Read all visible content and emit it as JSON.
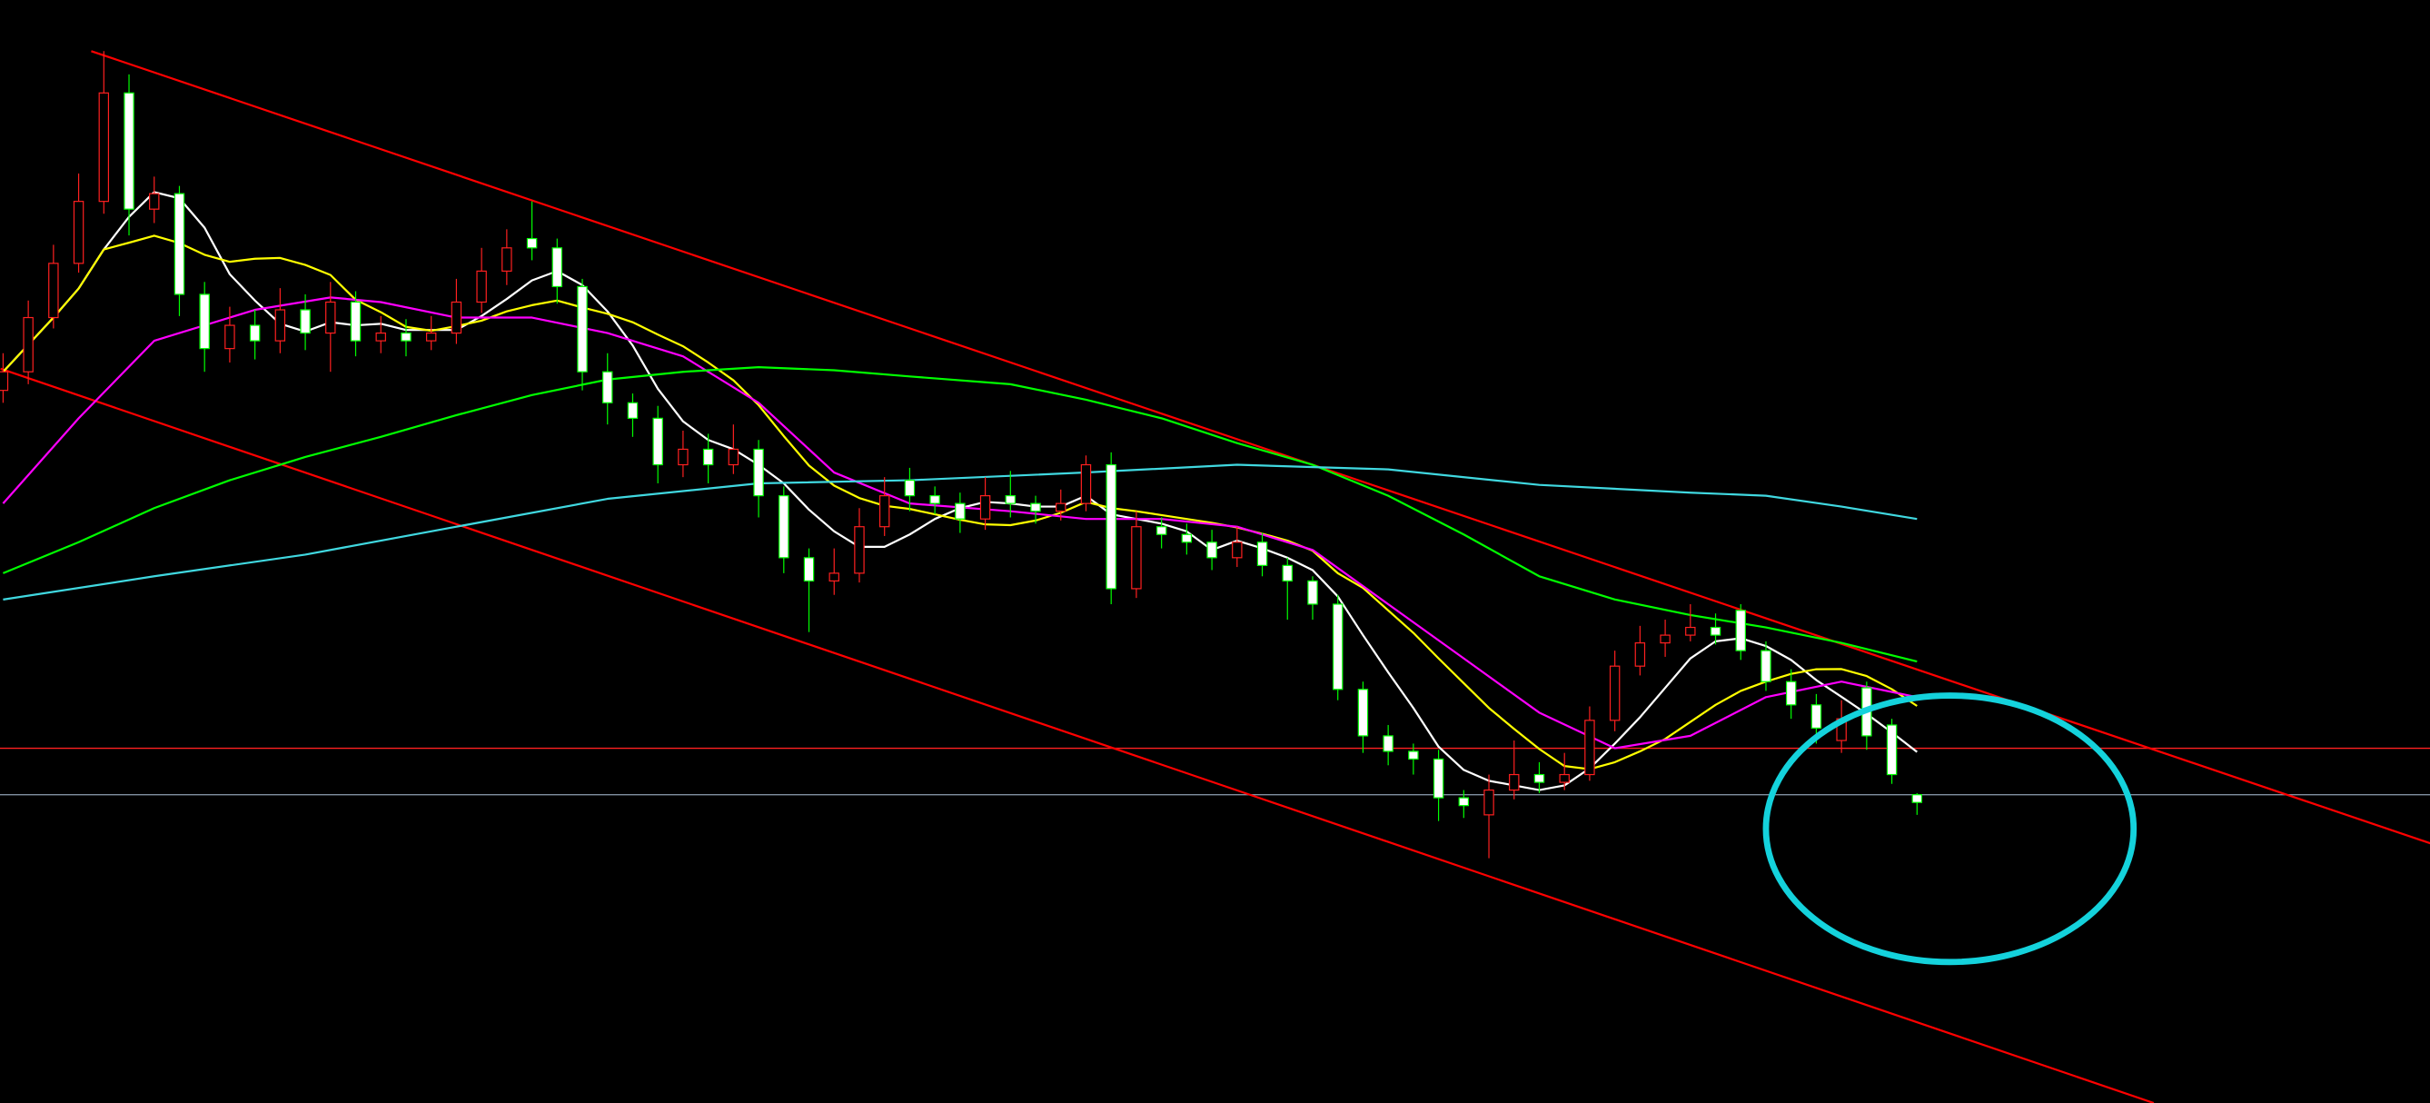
{
  "chart_data": {
    "type": "candlestick",
    "title": "",
    "xlabel": "",
    "ylabel": "",
    "grid": false,
    "background": "#000000",
    "colors": {
      "up_candle": "#ff2020",
      "down_candle_border": "#00ff00",
      "down_candle_fill": "#ffffff",
      "ma_short": "#ffffff",
      "ma_medium": "#ffff00",
      "ma_magenta": "#ff00ff",
      "ma_green": "#00ff00",
      "ma_cyan": "#40d8e0",
      "trendline": "#ff0000",
      "support_line": "#ff2020",
      "level_line": "#8090a0",
      "highlight_ellipse": "#14d2dc"
    },
    "ohlc": [
      [
        23.0,
        24.2,
        22.6,
        23.6
      ],
      [
        23.6,
        25.9,
        23.2,
        25.35
      ],
      [
        25.35,
        27.7,
        25.0,
        27.1
      ],
      [
        27.1,
        30.0,
        26.8,
        29.1
      ],
      [
        29.1,
        33.95,
        28.7,
        32.6
      ],
      [
        32.6,
        33.2,
        28.0,
        28.85
      ],
      [
        28.85,
        29.9,
        28.4,
        29.35
      ],
      [
        29.35,
        29.6,
        25.4,
        26.1
      ],
      [
        26.1,
        26.5,
        23.6,
        24.35
      ],
      [
        24.35,
        25.7,
        23.9,
        25.1
      ],
      [
        25.1,
        25.6,
        24.0,
        24.6
      ],
      [
        24.6,
        26.3,
        24.2,
        25.6
      ],
      [
        25.6,
        26.1,
        24.3,
        24.85
      ],
      [
        24.85,
        26.5,
        23.6,
        25.85
      ],
      [
        25.85,
        26.2,
        24.1,
        24.6
      ],
      [
        24.6,
        25.4,
        24.2,
        24.85
      ],
      [
        24.85,
        25.3,
        24.1,
        24.6
      ],
      [
        24.6,
        25.4,
        24.3,
        24.85
      ],
      [
        24.85,
        26.6,
        24.5,
        25.85
      ],
      [
        25.85,
        27.6,
        25.5,
        26.85
      ],
      [
        26.85,
        28.2,
        26.4,
        27.6
      ],
      [
        27.9,
        29.1,
        27.2,
        27.6
      ],
      [
        27.6,
        27.9,
        25.8,
        26.35
      ],
      [
        26.35,
        26.6,
        23.0,
        23.6
      ],
      [
        23.6,
        24.2,
        21.9,
        22.6
      ],
      [
        22.6,
        22.9,
        21.5,
        22.1
      ],
      [
        22.1,
        22.5,
        20.0,
        20.6
      ],
      [
        20.6,
        21.7,
        20.2,
        21.1
      ],
      [
        21.1,
        21.6,
        20.0,
        20.6
      ],
      [
        20.6,
        21.9,
        20.3,
        21.1
      ],
      [
        21.1,
        21.4,
        18.9,
        19.6
      ],
      [
        19.6,
        19.9,
        17.1,
        17.6
      ],
      [
        17.6,
        17.9,
        15.2,
        16.85
      ],
      [
        16.85,
        17.9,
        16.4,
        17.1
      ],
      [
        17.1,
        19.2,
        16.8,
        18.6
      ],
      [
        18.6,
        20.2,
        18.3,
        19.6
      ],
      [
        20.1,
        20.5,
        19.1,
        19.6
      ],
      [
        19.6,
        19.9,
        19.0,
        19.35
      ],
      [
        19.35,
        19.7,
        18.4,
        18.85
      ],
      [
        18.85,
        20.2,
        18.5,
        19.6
      ],
      [
        19.6,
        20.4,
        18.9,
        19.35
      ],
      [
        19.35,
        19.6,
        18.7,
        19.1
      ],
      [
        19.1,
        19.8,
        18.8,
        19.35
      ],
      [
        19.35,
        20.9,
        19.1,
        20.6
      ],
      [
        20.6,
        21.0,
        16.1,
        16.6
      ],
      [
        16.6,
        19.1,
        16.3,
        18.6
      ],
      [
        18.6,
        18.9,
        17.9,
        18.35
      ],
      [
        18.35,
        18.7,
        17.7,
        18.1
      ],
      [
        18.1,
        18.5,
        17.2,
        17.6
      ],
      [
        17.6,
        18.6,
        17.3,
        18.1
      ],
      [
        18.1,
        18.4,
        17.0,
        17.35
      ],
      [
        17.35,
        17.6,
        15.6,
        16.85
      ],
      [
        16.85,
        17.0,
        15.6,
        16.1
      ],
      [
        16.1,
        16.4,
        13.0,
        13.35
      ],
      [
        13.35,
        13.6,
        11.3,
        11.85
      ],
      [
        11.85,
        12.2,
        10.9,
        11.35
      ],
      [
        11.35,
        11.6,
        10.6,
        11.1
      ],
      [
        11.1,
        11.4,
        9.1,
        9.85
      ],
      [
        9.85,
        10.1,
        9.2,
        9.6
      ],
      [
        9.3,
        10.6,
        7.9,
        10.1
      ],
      [
        10.1,
        11.7,
        9.8,
        10.6
      ],
      [
        10.6,
        11.0,
        10.0,
        10.35
      ],
      [
        10.35,
        11.3,
        10.1,
        10.6
      ],
      [
        10.6,
        12.8,
        10.4,
        12.35
      ],
      [
        12.35,
        14.6,
        12.0,
        14.1
      ],
      [
        14.1,
        15.4,
        13.8,
        14.85
      ],
      [
        14.85,
        15.6,
        14.4,
        15.1
      ],
      [
        15.1,
        16.1,
        14.9,
        15.35
      ],
      [
        15.35,
        15.8,
        14.8,
        15.1
      ],
      [
        15.9,
        16.1,
        14.3,
        14.6
      ],
      [
        14.6,
        14.9,
        13.3,
        13.6
      ],
      [
        13.6,
        14.0,
        12.4,
        12.85
      ],
      [
        12.85,
        13.2,
        11.6,
        12.1
      ],
      [
        11.7,
        13.0,
        11.3,
        12.4
      ],
      [
        13.4,
        13.6,
        11.4,
        11.85
      ],
      [
        12.2,
        12.4,
        10.3,
        10.6
      ],
      [
        9.95,
        10.0,
        9.3,
        9.7
      ]
    ],
    "moving_averages": [
      {
        "kind": "ma5",
        "color": "#ffffff",
        "computed_from": "close",
        "period": 5
      },
      {
        "kind": "ma10",
        "color": "#ffff00",
        "computed_from": "close",
        "period": 10
      },
      {
        "kind": "magenta",
        "color": "#ff00ff",
        "x": [
          0,
          3,
          6,
          10,
          13,
          15,
          18,
          21,
          24,
          27,
          30,
          33,
          36,
          40,
          43,
          46,
          49,
          52,
          55,
          58,
          61,
          64,
          67,
          70,
          73,
          76
        ],
        "y": [
          19.35,
          22.1,
          24.6,
          25.6,
          26.0,
          25.85,
          25.35,
          25.35,
          24.85,
          24.1,
          22.6,
          20.35,
          19.35,
          19.1,
          18.85,
          18.85,
          18.6,
          17.85,
          16.1,
          14.35,
          12.6,
          11.45,
          11.85,
          13.1,
          13.6,
          13.1
        ]
      },
      {
        "kind": "green",
        "color": "#00ff00",
        "x": [
          0,
          3,
          6,
          9,
          12,
          15,
          18,
          21,
          24,
          27,
          30,
          33,
          36,
          40,
          43,
          46,
          49,
          52,
          55,
          58,
          61,
          64,
          67,
          70,
          73,
          76
        ],
        "y": [
          17.1,
          18.1,
          19.2,
          20.1,
          20.85,
          21.5,
          22.2,
          22.85,
          23.35,
          23.6,
          23.75,
          23.65,
          23.45,
          23.2,
          22.7,
          22.1,
          21.3,
          20.6,
          19.6,
          18.35,
          17.0,
          16.25,
          15.75,
          15.35,
          14.85,
          14.25
        ]
      },
      {
        "kind": "cyan",
        "color": "#40d8e0",
        "x": [
          0,
          6,
          12,
          18,
          24,
          30,
          36,
          43,
          49,
          55,
          61,
          67,
          70,
          73,
          76
        ],
        "y": [
          16.25,
          17.0,
          17.7,
          18.6,
          19.5,
          20.0,
          20.1,
          20.35,
          20.6,
          20.45,
          19.95,
          19.7,
          19.6,
          19.25,
          18.85
        ]
      }
    ],
    "annotations": {
      "upper_trendline": {
        "from": [
          3.5,
          33.95
        ],
        "to": [
          96.5,
          8.35
        ]
      },
      "lower_trendline": {
        "from": [
          -0.1,
          23.7
        ],
        "to": [
          85.4,
          0.0
        ]
      },
      "horizontal_red_line": 11.45,
      "horizontal_grey_line": 9.95,
      "highlight_ellipse": {
        "center": [
          77.3,
          8.85
        ],
        "rx": 7.3,
        "ry": 4.3
      }
    }
  }
}
